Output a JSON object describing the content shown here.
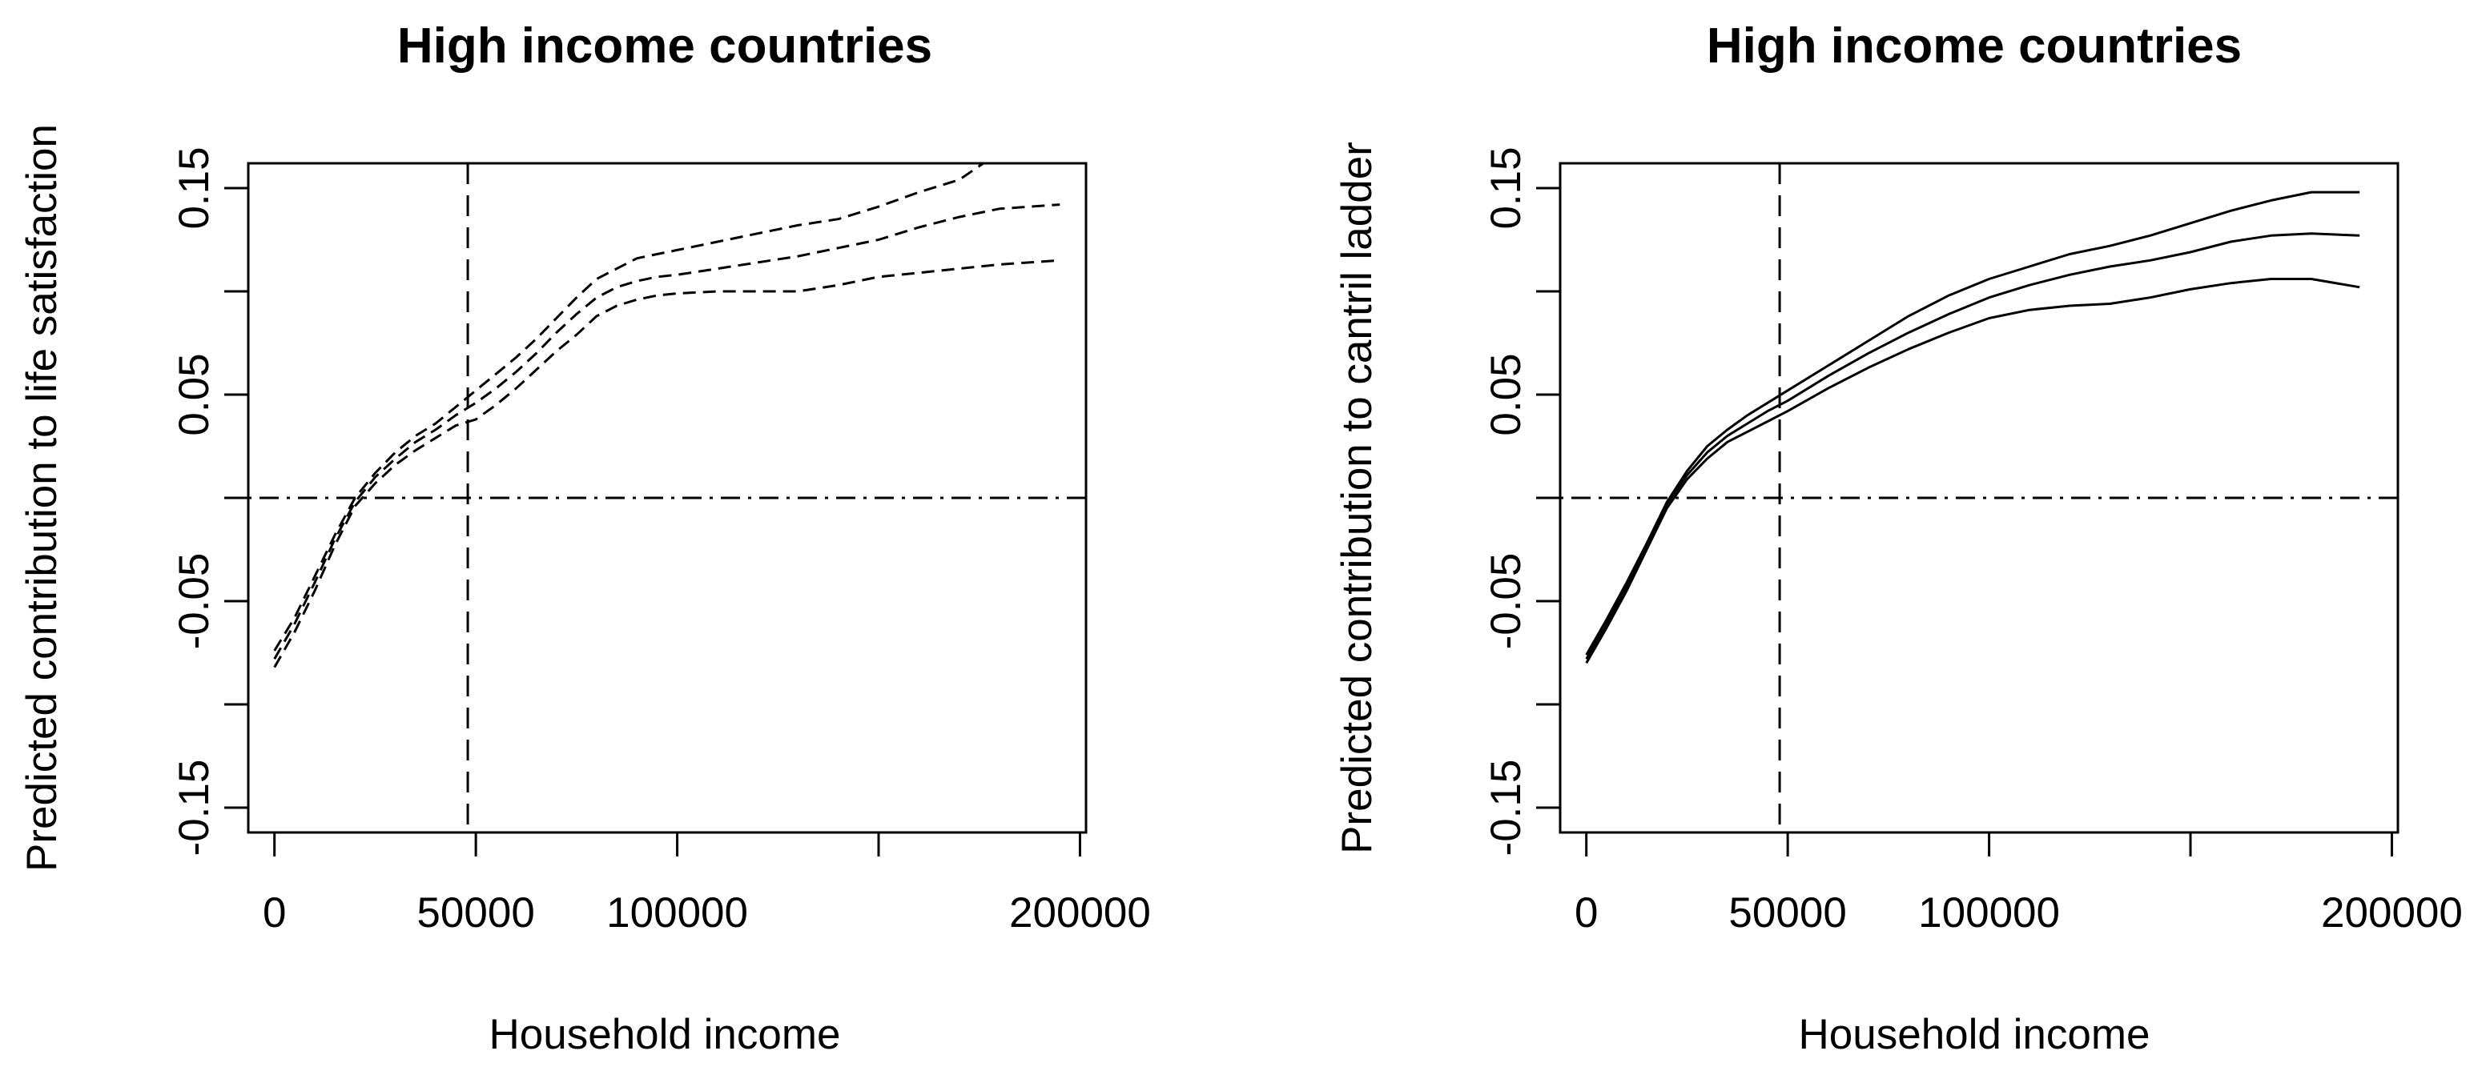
{
  "charts": [
    {
      "title": "High income countries",
      "xlabel": "Household income",
      "ylabel": "Predicted contribution to life satisfaction",
      "line_style": "dashed"
    },
    {
      "title": "High income countries",
      "xlabel": "Household income",
      "ylabel": "Predicted contribution to cantril ladder",
      "line_style": "solid"
    }
  ],
  "x_ticks": [
    {
      "value": 0,
      "label": "0"
    },
    {
      "value": 50000,
      "label": "50000"
    },
    {
      "value": 100000,
      "label": "100000"
    },
    {
      "value": 150000,
      "label": ""
    },
    {
      "value": 200000,
      "label": "200000"
    }
  ],
  "y_ticks": [
    {
      "value": -0.15,
      "label": "-0.15"
    },
    {
      "value": -0.1,
      "label": ""
    },
    {
      "value": -0.05,
      "label": "-0.05"
    },
    {
      "value": 0,
      "label": ""
    },
    {
      "value": 0.05,
      "label": "0.05"
    },
    {
      "value": 0.1,
      "label": ""
    },
    {
      "value": 0.15,
      "label": "0.15"
    }
  ],
  "chart_data": [
    {
      "type": "line",
      "title": "High income countries",
      "xlabel": "Household income",
      "ylabel": "Predicted contribution to life satisfaction",
      "xlim": [
        -6500,
        201500
      ],
      "ylim": [
        -0.162,
        0.162
      ],
      "grid": false,
      "legend": "none",
      "reference_lines": [
        {
          "orientation": "vertical",
          "x": 48000,
          "style": "dashed"
        },
        {
          "orientation": "horizontal",
          "y": 0,
          "style": "dot-dash"
        }
      ],
      "series": [
        {
          "values": [
            [
              0,
              -0.074
            ],
            [
              5000,
              -0.058
            ],
            [
              10000,
              -0.038
            ],
            [
              15000,
              -0.018
            ],
            [
              20000,
              0.0
            ],
            [
              25000,
              0.012
            ],
            [
              30000,
              0.022
            ],
            [
              35000,
              0.03
            ],
            [
              40000,
              0.036
            ],
            [
              45000,
              0.044
            ],
            [
              50000,
              0.052
            ],
            [
              55000,
              0.06
            ],
            [
              60000,
              0.068
            ],
            [
              65000,
              0.077
            ],
            [
              70000,
              0.087
            ],
            [
              75000,
              0.097
            ],
            [
              80000,
              0.106
            ],
            [
              85000,
              0.111
            ],
            [
              90000,
              0.116
            ],
            [
              95000,
              0.118
            ],
            [
              100000,
              0.12
            ],
            [
              110000,
              0.124
            ],
            [
              120000,
              0.128
            ],
            [
              130000,
              0.132
            ],
            [
              140000,
              0.135
            ],
            [
              150000,
              0.141
            ],
            [
              160000,
              0.148
            ],
            [
              170000,
              0.154
            ],
            [
              176000,
              0.162
            ]
          ]
        },
        {
          "values": [
            [
              0,
              -0.078
            ],
            [
              5000,
              -0.061
            ],
            [
              10000,
              -0.041
            ],
            [
              15000,
              -0.02
            ],
            [
              20000,
              -0.002
            ],
            [
              25000,
              0.01
            ],
            [
              30000,
              0.019
            ],
            [
              35000,
              0.027
            ],
            [
              40000,
              0.033
            ],
            [
              45000,
              0.04
            ],
            [
              50000,
              0.046
            ],
            [
              55000,
              0.053
            ],
            [
              60000,
              0.061
            ],
            [
              65000,
              0.07
            ],
            [
              70000,
              0.08
            ],
            [
              75000,
              0.089
            ],
            [
              80000,
              0.097
            ],
            [
              85000,
              0.102
            ],
            [
              90000,
              0.105
            ],
            [
              95000,
              0.107
            ],
            [
              100000,
              0.108
            ],
            [
              110000,
              0.111
            ],
            [
              120000,
              0.114
            ],
            [
              130000,
              0.117
            ],
            [
              140000,
              0.121
            ],
            [
              150000,
              0.125
            ],
            [
              160000,
              0.131
            ],
            [
              170000,
              0.136
            ],
            [
              180000,
              0.14
            ],
            [
              195000,
              0.142
            ]
          ]
        },
        {
          "values": [
            [
              0,
              -0.082
            ],
            [
              5000,
              -0.065
            ],
            [
              10000,
              -0.045
            ],
            [
              15000,
              -0.023
            ],
            [
              20000,
              -0.004
            ],
            [
              25000,
              0.007
            ],
            [
              30000,
              0.016
            ],
            [
              35000,
              0.023
            ],
            [
              40000,
              0.029
            ],
            [
              45000,
              0.035
            ],
            [
              50000,
              0.038
            ],
            [
              55000,
              0.045
            ],
            [
              60000,
              0.053
            ],
            [
              65000,
              0.062
            ],
            [
              70000,
              0.071
            ],
            [
              75000,
              0.079
            ],
            [
              80000,
              0.088
            ],
            [
              85000,
              0.093
            ],
            [
              90000,
              0.096
            ],
            [
              95000,
              0.098
            ],
            [
              100000,
              0.099
            ],
            [
              110000,
              0.1
            ],
            [
              120000,
              0.1
            ],
            [
              130000,
              0.1
            ],
            [
              140000,
              0.103
            ],
            [
              150000,
              0.107
            ],
            [
              160000,
              0.109
            ],
            [
              170000,
              0.111
            ],
            [
              180000,
              0.113
            ],
            [
              195000,
              0.115
            ]
          ]
        }
      ]
    },
    {
      "type": "line",
      "title": "High income countries",
      "xlabel": "Household income",
      "ylabel": "Predicted contribution to cantril ladder",
      "xlim": [
        -6500,
        201500
      ],
      "ylim": [
        -0.162,
        0.162
      ],
      "grid": false,
      "legend": "none",
      "reference_lines": [
        {
          "orientation": "vertical",
          "x": 48000,
          "style": "dashed"
        },
        {
          "orientation": "horizontal",
          "y": 0,
          "style": "dot-dash"
        }
      ],
      "series": [
        {
          "values": [
            [
              0,
              -0.076
            ],
            [
              5000,
              -0.059
            ],
            [
              10000,
              -0.041
            ],
            [
              15000,
              -0.022
            ],
            [
              20000,
              -0.002
            ],
            [
              25000,
              0.013
            ],
            [
              30000,
              0.025
            ],
            [
              35000,
              0.033
            ],
            [
              40000,
              0.04
            ],
            [
              45000,
              0.046
            ],
            [
              50000,
              0.052
            ],
            [
              60000,
              0.064
            ],
            [
              70000,
              0.076
            ],
            [
              80000,
              0.088
            ],
            [
              90000,
              0.098
            ],
            [
              100000,
              0.106
            ],
            [
              110000,
              0.112
            ],
            [
              120000,
              0.118
            ],
            [
              130000,
              0.122
            ],
            [
              140000,
              0.127
            ],
            [
              150000,
              0.133
            ],
            [
              160000,
              0.139
            ],
            [
              170000,
              0.144
            ],
            [
              180000,
              0.148
            ],
            [
              192000,
              0.148
            ]
          ]
        },
        {
          "values": [
            [
              0,
              -0.078
            ],
            [
              5000,
              -0.061
            ],
            [
              10000,
              -0.043
            ],
            [
              15000,
              -0.023
            ],
            [
              20000,
              -0.003
            ],
            [
              25000,
              0.011
            ],
            [
              30000,
              0.022
            ],
            [
              35000,
              0.03
            ],
            [
              40000,
              0.036
            ],
            [
              45000,
              0.042
            ],
            [
              50000,
              0.047
            ],
            [
              60000,
              0.059
            ],
            [
              70000,
              0.07
            ],
            [
              80000,
              0.08
            ],
            [
              90000,
              0.089
            ],
            [
              100000,
              0.097
            ],
            [
              110000,
              0.103
            ],
            [
              120000,
              0.108
            ],
            [
              130000,
              0.112
            ],
            [
              140000,
              0.115
            ],
            [
              150000,
              0.119
            ],
            [
              160000,
              0.124
            ],
            [
              170000,
              0.127
            ],
            [
              180000,
              0.128
            ],
            [
              192000,
              0.127
            ]
          ]
        },
        {
          "values": [
            [
              0,
              -0.08
            ],
            [
              5000,
              -0.063
            ],
            [
              10000,
              -0.045
            ],
            [
              15000,
              -0.025
            ],
            [
              20000,
              -0.005
            ],
            [
              25000,
              0.009
            ],
            [
              30000,
              0.019
            ],
            [
              35000,
              0.027
            ],
            [
              40000,
              0.032
            ],
            [
              45000,
              0.037
            ],
            [
              50000,
              0.042
            ],
            [
              60000,
              0.053
            ],
            [
              70000,
              0.063
            ],
            [
              80000,
              0.072
            ],
            [
              90000,
              0.08
            ],
            [
              100000,
              0.087
            ],
            [
              110000,
              0.091
            ],
            [
              120000,
              0.093
            ],
            [
              130000,
              0.094
            ],
            [
              140000,
              0.097
            ],
            [
              150000,
              0.101
            ],
            [
              160000,
              0.104
            ],
            [
              170000,
              0.106
            ],
            [
              180000,
              0.106
            ],
            [
              192000,
              0.102
            ]
          ]
        }
      ]
    }
  ]
}
